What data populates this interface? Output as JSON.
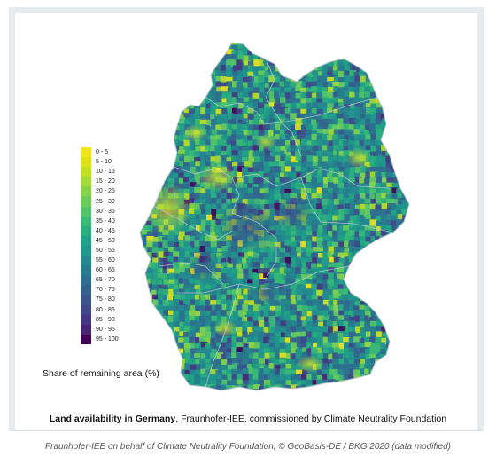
{
  "legend": {
    "title": "Share of remaining area (%)",
    "items": [
      {
        "label": "0 - 5",
        "color": "#f2e51d"
      },
      {
        "label": "5 - 10",
        "color": "#dde318"
      },
      {
        "label": "10 - 15",
        "color": "#c2df23"
      },
      {
        "label": "15 - 20",
        "color": "#a5db36"
      },
      {
        "label": "20 - 25",
        "color": "#86d549"
      },
      {
        "label": "25 - 30",
        "color": "#6ccd5a"
      },
      {
        "label": "30 - 35",
        "color": "#52c569"
      },
      {
        "label": "35 - 40",
        "color": "#3bbb75"
      },
      {
        "label": "40 - 45",
        "color": "#2ab07f"
      },
      {
        "label": "45 - 50",
        "color": "#20a386"
      },
      {
        "label": "50 - 55",
        "color": "#1f978b"
      },
      {
        "label": "55 - 60",
        "color": "#23898e"
      },
      {
        "label": "60 - 65",
        "color": "#287c8e"
      },
      {
        "label": "65 - 70",
        "color": "#2d6f8e"
      },
      {
        "label": "70 - 75",
        "color": "#33638d"
      },
      {
        "label": "75 - 80",
        "color": "#39558c"
      },
      {
        "label": "80 - 85",
        "color": "#404688"
      },
      {
        "label": "85 - 90",
        "color": "#453781"
      },
      {
        "label": "90 - 95",
        "color": "#482576"
      },
      {
        "label": "95 - 100",
        "color": "#440154"
      }
    ]
  },
  "caption": {
    "bold": "Land availability in Germany",
    "rest": ", Fraunhofer-IEE, commissioned by Climate Neutrality Foundation"
  },
  "source": "Fraunhofer-IEE on behalf of Climate Neutrality Foundation, © GeoBasis-DE / BKG 2020 (data modified)"
}
